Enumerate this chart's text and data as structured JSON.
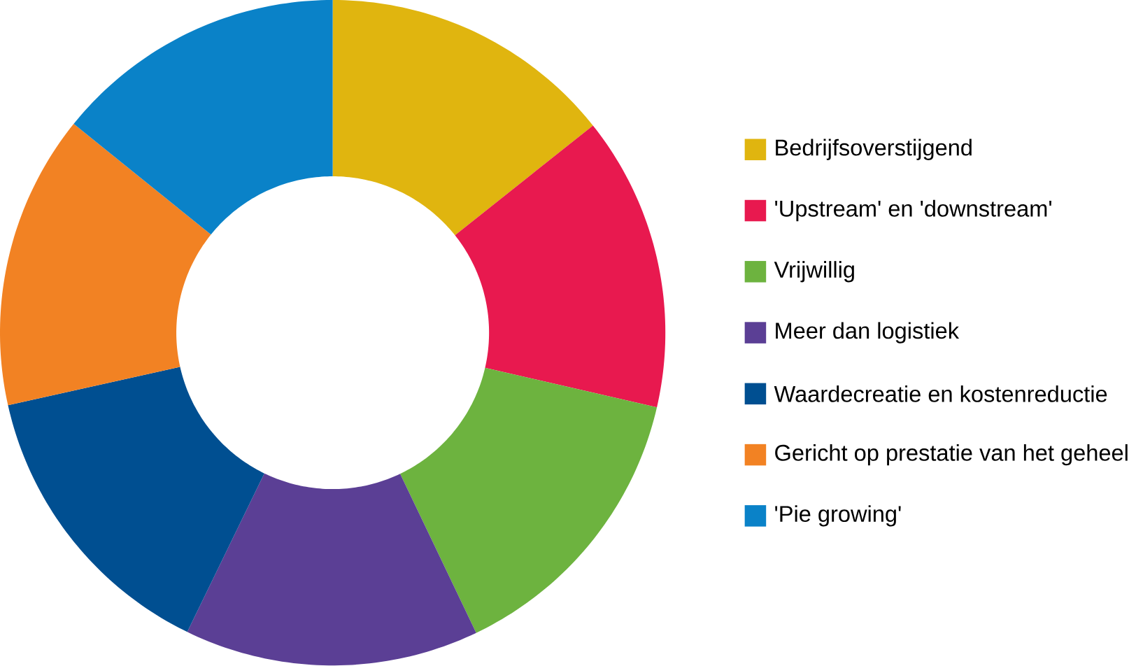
{
  "chart_data": {
    "type": "donut",
    "categories": [
      "Bedrijfsoverstijgend",
      "'Upstream' en 'downstream'",
      "Vrijwillig",
      "Meer dan logistiek",
      "Waardecreatie en kostenreductie",
      "Gericht op prestatie van het geheel",
      "'Pie growing'"
    ],
    "values": [
      14.3,
      14.3,
      14.3,
      14.3,
      14.3,
      14.3,
      14.2
    ],
    "colors": [
      "#e0b50f",
      "#e8194f",
      "#6db33f",
      "#5b3f95",
      "#004f91",
      "#f28223",
      "#0a82c8"
    ],
    "legend": "right"
  }
}
